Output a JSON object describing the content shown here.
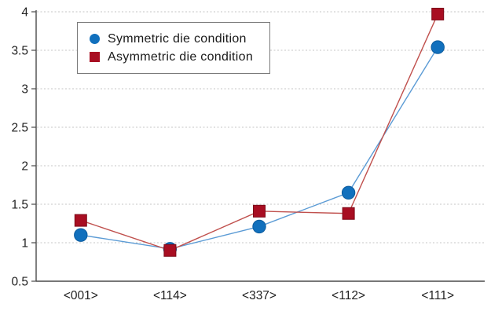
{
  "chart_data": {
    "type": "line",
    "categories": [
      "<001>",
      "<114>",
      "<337>",
      "<112>",
      "<111>"
    ],
    "series": [
      {
        "name": "Symmetric die condition",
        "marker": "circle",
        "marker_color": "#1170bd",
        "marker_stroke": "#0d5c9e",
        "line_color": "#5b9bd5",
        "values": [
          1.1,
          0.92,
          1.21,
          1.65,
          3.54
        ]
      },
      {
        "name": "Asymmetric die condition",
        "marker": "square",
        "marker_color": "#a80e22",
        "marker_stroke": "#7c0a18",
        "line_color": "#c0504d",
        "values": [
          1.29,
          0.9,
          1.41,
          1.38,
          3.97
        ]
      }
    ],
    "ylim": [
      0.5,
      4
    ],
    "y_ticks": [
      0.5,
      1,
      1.5,
      2,
      2.5,
      3,
      3.5,
      4
    ],
    "y_tick_labels": [
      "0.5",
      "1",
      "1.5",
      "2",
      "2.5",
      "3",
      "3.5",
      "4"
    ],
    "xlabel": "",
    "ylabel": "",
    "title": "",
    "grid": "horizontal-dotted",
    "grid_color": "#c6c6c6",
    "axis_color": "#4a4a4a",
    "legend_position": "top-left"
  }
}
